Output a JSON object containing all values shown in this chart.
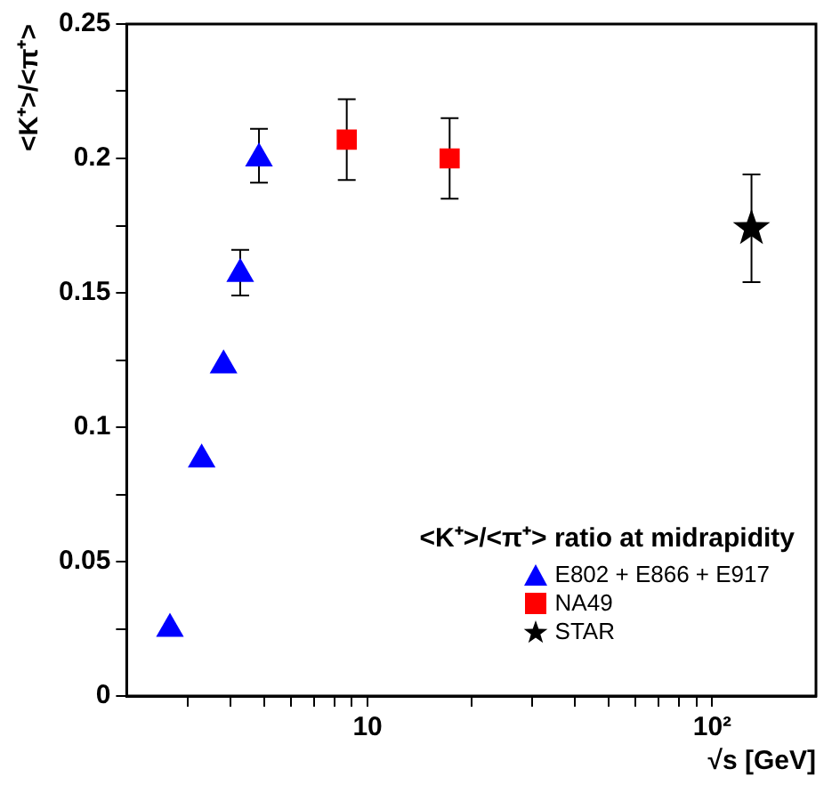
{
  "chart_data": {
    "type": "scatter",
    "xlabel": "√s [GeV]",
    "ylabel": "<K⁺>/<π⁺>",
    "legend_title": "<K⁺>/<π⁺> ratio at midrapidity",
    "legend": "bottom right",
    "log": "x",
    "grid": false,
    "xlim": [
      2,
      200
    ],
    "xticks": [
      {
        "value": 3,
        "label": null
      },
      {
        "value": 4,
        "label": null
      },
      {
        "value": 5,
        "label": null
      },
      {
        "value": 6,
        "label": null
      },
      {
        "value": 7,
        "label": null
      },
      {
        "value": 8,
        "label": null
      },
      {
        "value": 9,
        "label": null
      },
      10,
      {
        "value": 20,
        "label": null
      },
      {
        "value": 30,
        "label": null
      },
      {
        "value": 40,
        "label": null
      },
      {
        "value": 50,
        "label": null
      },
      {
        "value": 60,
        "label": null
      },
      {
        "value": 70,
        "label": null
      },
      {
        "value": 80,
        "label": null
      },
      {
        "value": 90,
        "label": null
      },
      {
        "value": 100,
        "label": "10²"
      }
    ],
    "ylim": [
      0,
      0.25
    ],
    "yticks": [
      0,
      {
        "value": 0.025,
        "label": null
      },
      0.05,
      {
        "value": 0.075,
        "label": null
      },
      0.1,
      {
        "value": 0.125,
        "label": null
      },
      0.15,
      {
        "value": 0.175,
        "label": null
      },
      0.2,
      {
        "value": 0.225,
        "label": null
      },
      0.25
    ],
    "series": [
      {
        "name": "E802 + E866 + E917",
        "color": "#0000ff",
        "marker": "triangle",
        "x": [
          2.67,
          3.3,
          3.82,
          4.27,
          4.84
        ],
        "values": [
          0.025,
          0.088,
          0.123,
          0.157,
          0.2
        ],
        "errors": [
          null,
          null,
          null,
          [
            0.149,
            0.166
          ],
          [
            0.191,
            0.211
          ]
        ]
      },
      {
        "name": "NA49",
        "color": "#ff0000",
        "marker": "square",
        "x": [
          8.7,
          17.3
        ],
        "values": [
          0.207,
          0.2
        ],
        "errors": [
          [
            0.192,
            0.222
          ],
          [
            0.185,
            0.215
          ]
        ]
      },
      {
        "name": "STAR",
        "color": "#000000",
        "marker": "star",
        "x": [
          130
        ],
        "values": [
          0.174
        ],
        "errors": [
          [
            0.154,
            0.194
          ]
        ]
      }
    ]
  }
}
